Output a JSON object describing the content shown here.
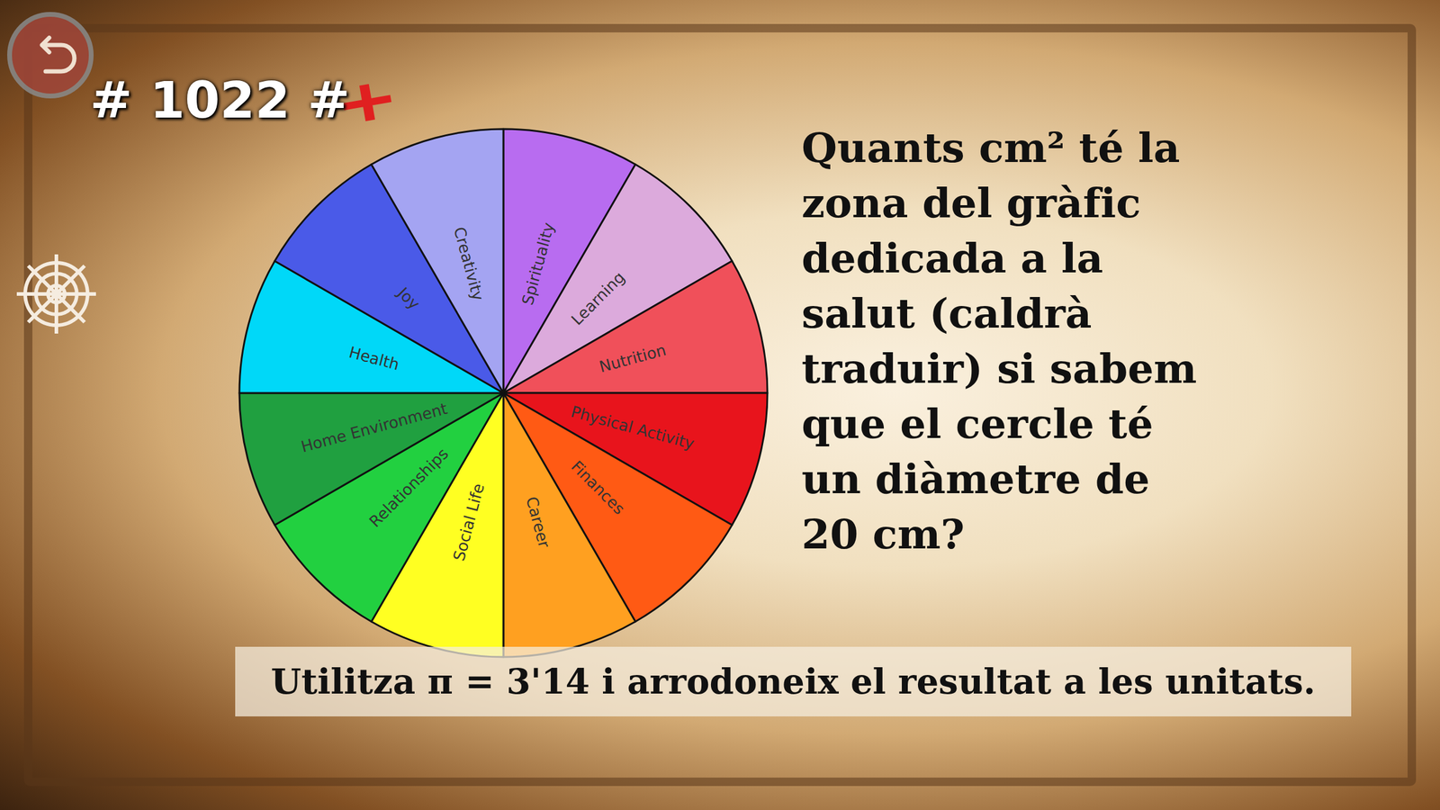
{
  "header": {
    "text": "# 1022 #"
  },
  "question": {
    "lines": [
      "Quants cm² té la",
      "zona del gràfic",
      "dedicada a la",
      "salut (caldrà",
      "traduir) si sabem",
      "que el cercle té",
      "un diàmetre de",
      "20 cm?"
    ]
  },
  "instruction": {
    "text": "Utilitza π = 3'14 i arrodoneix el resultat a les unitats."
  },
  "chart_data": {
    "type": "pie",
    "categories": [
      "Spirituality",
      "Learning",
      "Nutrition",
      "Physical Activity",
      "Finances",
      "Career",
      "Social Life",
      "Relationships",
      "Home Environment",
      "Health",
      "Joy",
      "Creativity"
    ],
    "values": [
      1,
      1,
      1,
      1,
      1,
      1,
      1,
      1,
      1,
      1,
      1,
      1
    ],
    "colors": [
      "#b86cf0",
      "#dcaadc",
      "#f0505a",
      "#e8141c",
      "#ff5a14",
      "#ffa020",
      "#ffff22",
      "#22d040",
      "#20a040",
      "#00d8f8",
      "#4a5ae8",
      "#a4a4f2"
    ]
  }
}
